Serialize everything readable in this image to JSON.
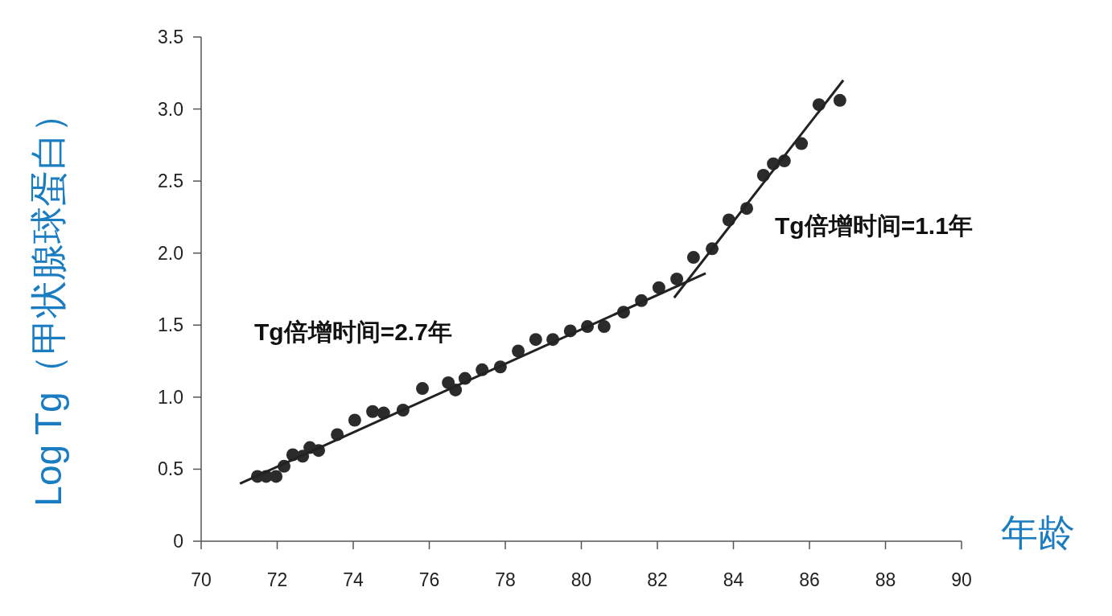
{
  "chart_data": {
    "type": "scatter",
    "xlabel": "年龄",
    "ylabel": "Log Tg（甲状腺球蛋白）",
    "xlim": [
      70,
      90
    ],
    "xticks": [
      70,
      72,
      74,
      76,
      78,
      80,
      82,
      84,
      86,
      88,
      90
    ],
    "ylim": [
      0,
      3.5
    ],
    "yticks": [
      0,
      0.5,
      {
        "value": 1,
        "label": "1.0"
      },
      1.5,
      {
        "value": 2,
        "label": "2.0"
      },
      2.5,
      {
        "value": 3,
        "label": "3.0"
      },
      3.5
    ],
    "grid": false,
    "series": [
      {
        "marker": "circle",
        "color": "#2b2b2b",
        "x": [
          71.48,
          71.71,
          71.97,
          72.18,
          72.41,
          72.67,
          72.86,
          73.09,
          73.58,
          74.04,
          74.51,
          74.8,
          75.31,
          75.82,
          76.5,
          76.69,
          76.94,
          77.39,
          77.87,
          78.34,
          78.8,
          79.25,
          79.71,
          80.16,
          80.6,
          81.11,
          81.58,
          82.04,
          82.51,
          82.95,
          83.44,
          83.88,
          84.35,
          84.79,
          85.05,
          85.34,
          85.79,
          86.25,
          86.8
        ],
        "values": [
          0.45,
          0.45,
          0.45,
          0.52,
          0.6,
          0.59,
          0.65,
          0.63,
          0.74,
          0.84,
          0.9,
          0.89,
          0.91,
          1.06,
          1.1,
          1.05,
          1.13,
          1.19,
          1.21,
          1.32,
          1.4,
          1.4,
          1.46,
          1.49,
          1.49,
          1.59,
          1.67,
          1.76,
          1.82,
          1.97,
          2.03,
          2.23,
          2.31,
          2.54,
          2.62,
          2.64,
          2.76,
          3.03,
          3.06
        ]
      },
      {
        "type": "line",
        "marker": "none",
        "color": "#222222",
        "x": [
          71.02,
          83.27
        ],
        "values": [
          0.4,
          1.86
        ]
      },
      {
        "type": "line",
        "marker": "none",
        "color": "#222222",
        "x": [
          82.44,
          86.89
        ],
        "values": [
          1.69,
          3.2
        ]
      }
    ],
    "annotations": [
      "Tg倍增时间=2.7年",
      "Tg倍增时间=1.1年"
    ]
  }
}
